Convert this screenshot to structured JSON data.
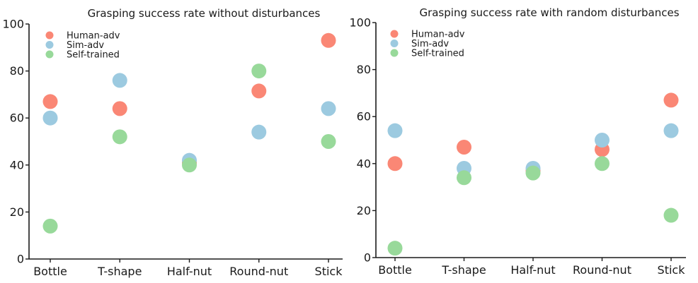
{
  "chart_data": [
    {
      "type": "scatter",
      "title": "Grasping success rate without disturbances",
      "categories": [
        "Bottle",
        "T-shape",
        "Half-nut",
        "Round-nut",
        "Stick"
      ],
      "ylim": [
        0,
        100
      ],
      "yticks": [
        0,
        20,
        40,
        60,
        80,
        100
      ],
      "grid": false,
      "legend": "top-left",
      "series": [
        {
          "name": "Human-adv",
          "color": "#fa8775",
          "values": [
            67,
            64,
            41,
            71.5,
            93
          ]
        },
        {
          "name": "Sim-adv",
          "color": "#9ccae0",
          "values": [
            60,
            76,
            42,
            54,
            64
          ]
        },
        {
          "name": "Self-trained",
          "color": "#98d99a",
          "values": [
            14,
            52,
            40,
            80,
            50
          ]
        }
      ]
    },
    {
      "type": "scatter",
      "title": "Grasping success rate with random disturbances",
      "categories": [
        "Bottle",
        "T-shape",
        "Half-nut",
        "Round-nut",
        "Stick"
      ],
      "ylim": [
        0,
        100
      ],
      "yticks": [
        0,
        20,
        40,
        60,
        80,
        100
      ],
      "grid": false,
      "legend": "top-left",
      "series": [
        {
          "name": "Human-adv",
          "color": "#fa8775",
          "values": [
            40,
            47,
            37,
            46,
            67
          ]
        },
        {
          "name": "Sim-adv",
          "color": "#9ccae0",
          "values": [
            54,
            38,
            38,
            50,
            54
          ]
        },
        {
          "name": "Self-trained",
          "color": "#98d99a",
          "values": [
            4,
            34,
            36,
            40,
            18
          ]
        }
      ]
    }
  ]
}
